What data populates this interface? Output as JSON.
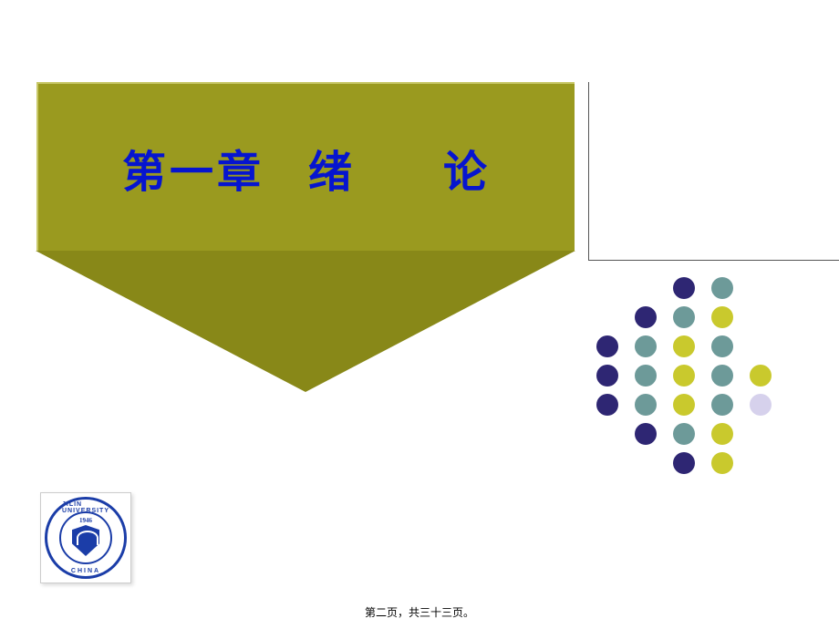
{
  "title": "第一章   绪      论",
  "banner": {
    "background_rect": "#9a9a1f",
    "background_triangle": "#888818",
    "highlight_edge": "#c8c868",
    "title_color": "#0615cf",
    "title_fontsize": 48
  },
  "dividers": {
    "color": "#555555"
  },
  "dots": {
    "colors": {
      "navy": "#2e2673",
      "teal": "#6d9a99",
      "olive": "#c9c92d",
      "lilac": "#d6d1ec"
    },
    "grid": [
      [
        "",
        "",
        "navy",
        "teal",
        ""
      ],
      [
        "",
        "navy",
        "teal",
        "olive",
        ""
      ],
      [
        "navy",
        "teal",
        "olive",
        "teal",
        ""
      ],
      [
        "navy",
        "teal",
        "olive",
        "teal",
        "olive"
      ],
      [
        "navy",
        "teal",
        "olive",
        "teal",
        "lilac"
      ],
      [
        "",
        "navy",
        "teal",
        "olive",
        ""
      ],
      [
        "",
        "",
        "navy",
        "olive",
        ""
      ]
    ]
  },
  "logo": {
    "university_en": "JILIN UNIVERSITY",
    "country": "CHINA",
    "year": "1946",
    "color": "#1b3da8"
  },
  "footer": "第二页，共三十三页。"
}
